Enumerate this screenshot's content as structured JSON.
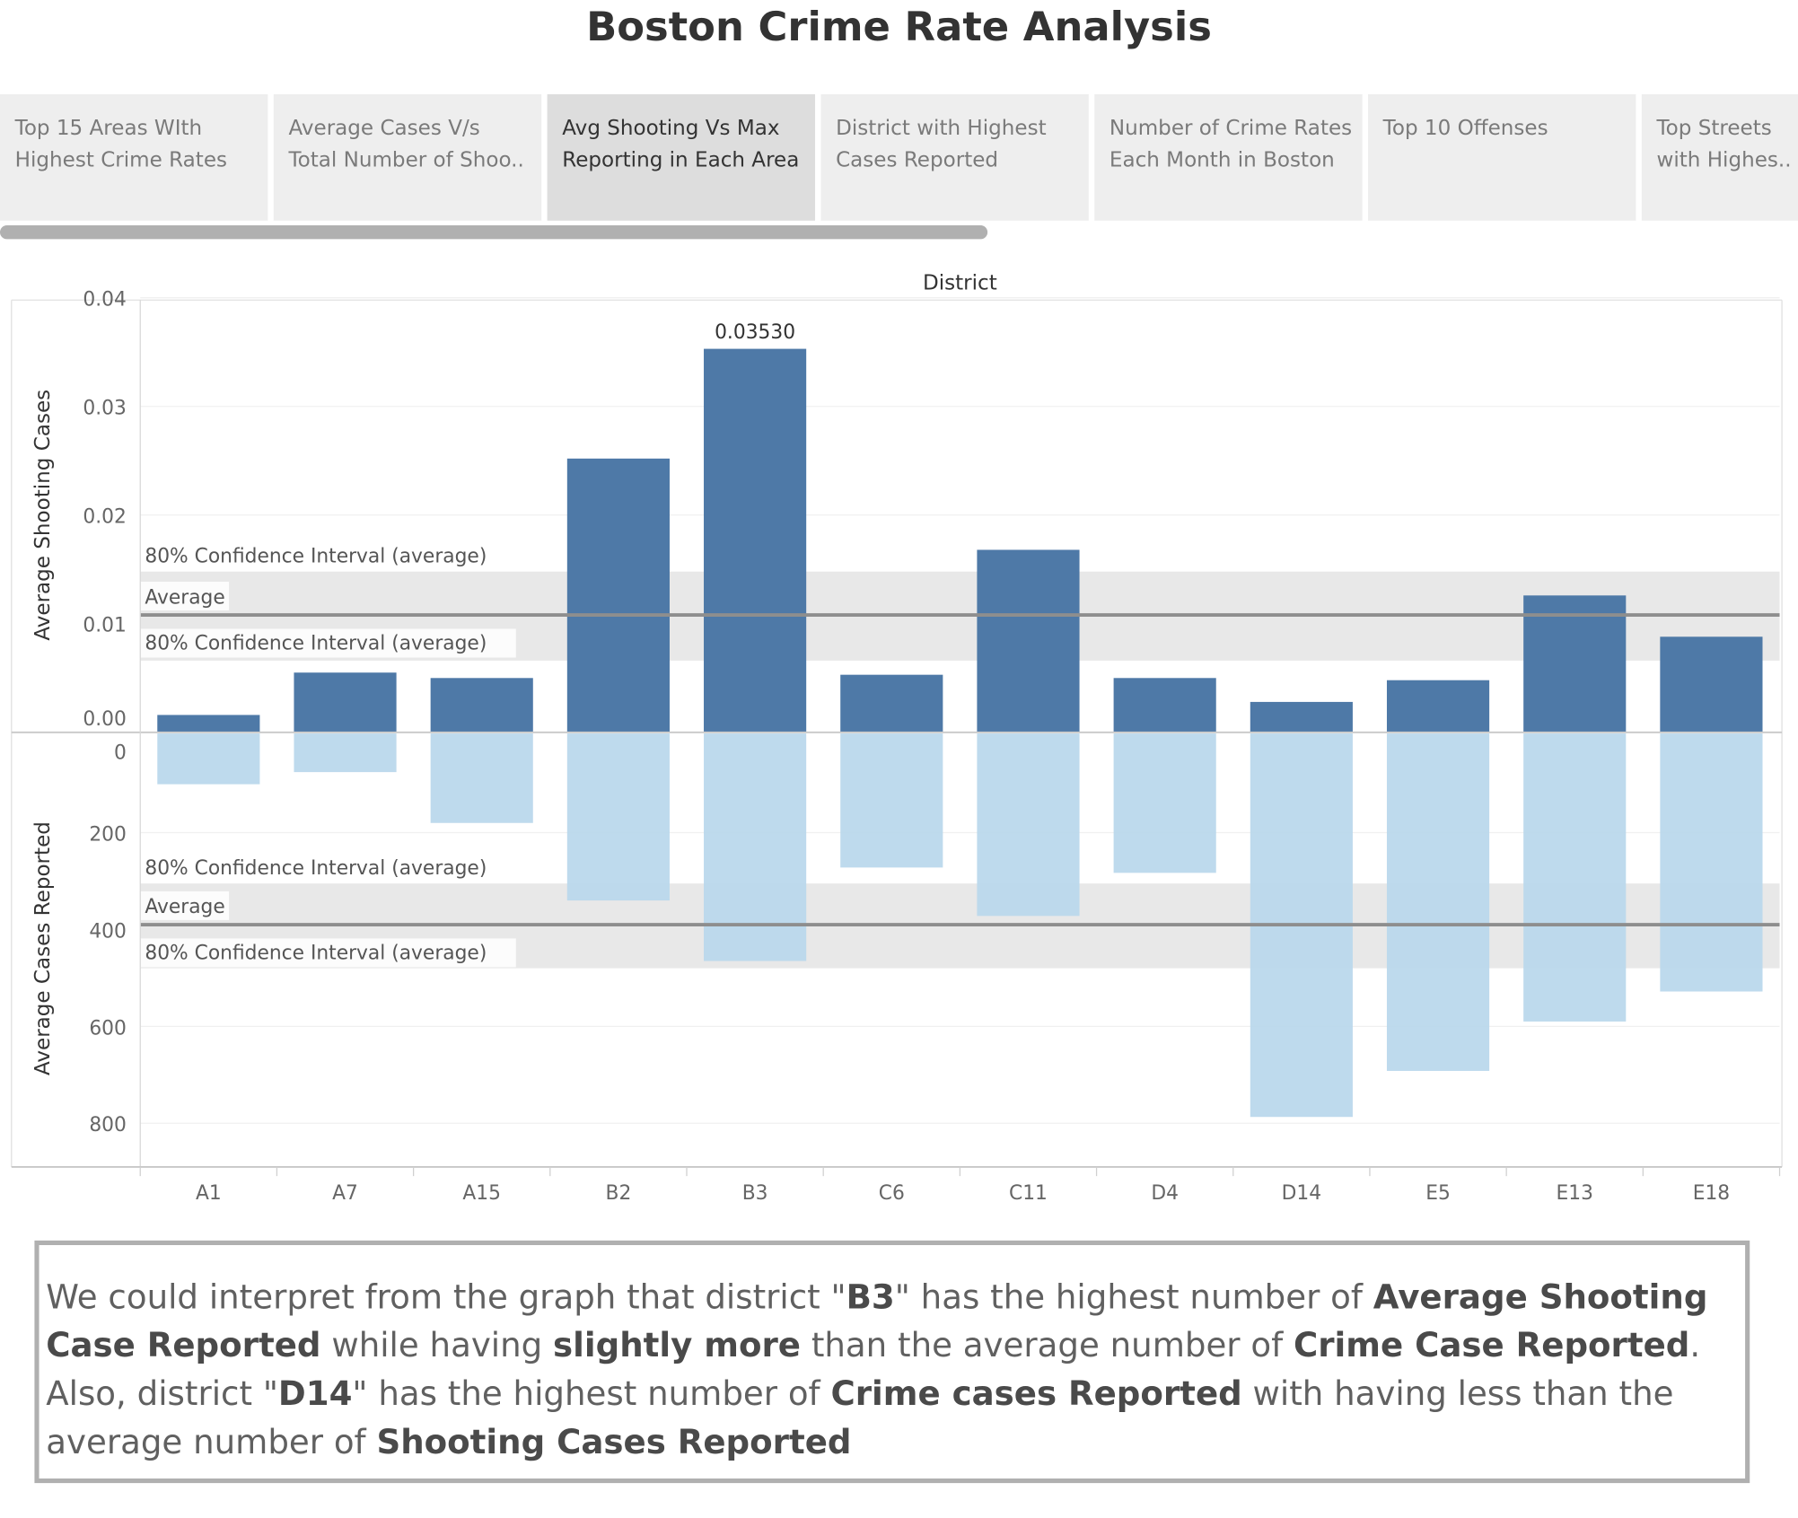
{
  "title": "Boston Crime Rate Analysis",
  "tabs": [
    {
      "line1": "Top 15 Areas WIth",
      "line2": "Highest Crime Rates",
      "active": false
    },
    {
      "line1": "Average Cases V/s",
      "line2": "Total Number of Shoo..",
      "active": false
    },
    {
      "line1": "Avg Shooting Vs Max",
      "line2": "Reporting in Each Area",
      "active": true
    },
    {
      "line1": "District with Highest",
      "line2": "Cases Reported",
      "active": false
    },
    {
      "line1": "Number of Crime Rates",
      "line2": "Each Month in Boston",
      "active": false
    },
    {
      "line1": "Top 10 Offenses",
      "line2": "",
      "active": false
    },
    {
      "line1": "Top Streets",
      "line2": "with Highes..",
      "active": false
    }
  ],
  "chart_data": {
    "type": "bar",
    "xlabel": "District",
    "categories": [
      "A1",
      "A7",
      "A15",
      "B2",
      "B3",
      "C6",
      "C11",
      "D4",
      "D14",
      "E5",
      "E13",
      "E18"
    ],
    "colors": {
      "shooting": "#4e79a7",
      "cases": "#b8d7ec",
      "band": "#e8e8e8",
      "average_line": "#8e8e8e"
    },
    "panels": [
      {
        "name": "shooting",
        "ylabel": "Average Shooting Cases",
        "ylim": [
          0,
          0.04
        ],
        "ticks": [
          "0.04",
          "0.03",
          "0.02",
          "0.01",
          "0.00"
        ],
        "tick_values": [
          0.04,
          0.03,
          0.02,
          0.01,
          0.0
        ],
        "values": [
          0.0016,
          0.0055,
          0.005,
          0.0252,
          0.0353,
          0.0053,
          0.0168,
          0.005,
          0.0028,
          0.0048,
          0.0126,
          0.0088
        ],
        "average": 0.0108,
        "confidence_interval": [
          0.0066,
          0.0148
        ],
        "value_label": {
          "index": 4,
          "text": "0.03530"
        },
        "ref_labels": {
          "upper": "80% Confidence Interval (average)",
          "average": "Average",
          "lower": "80% Confidence Interval (average)"
        }
      },
      {
        "name": "cases",
        "ylabel": "Average Cases Reported",
        "ylim": [
          0,
          900
        ],
        "reversed": true,
        "ticks": [
          "0",
          "200",
          "400",
          "600",
          "800"
        ],
        "tick_values": [
          0,
          200,
          400,
          600,
          800
        ],
        "values": [
          100,
          75,
          180,
          340,
          465,
          272,
          372,
          283,
          787,
          692,
          590,
          528
        ],
        "average": 390,
        "confidence_interval": [
          305,
          480
        ],
        "ref_labels": {
          "upper": "80% Confidence Interval (average)",
          "average": "Average",
          "lower": "80% Confidence Interval (average)"
        }
      }
    ]
  },
  "annotation": {
    "p1_a": "We could interpret from the graph that district \"",
    "p1_b": "B3",
    "p1_c": "\" has the highest number of ",
    "p1_d": "Average Shooting Case Reported",
    "p1_e": " while having ",
    "p1_f": "slightly more",
    "p1_g": " than the average number of ",
    "p1_h": "Crime Case Reported",
    "p1_i": ".",
    "p2_a": "Also, district \"",
    "p2_b": "D14",
    "p2_c": "\" has the highest number of ",
    "p2_d": "Crime cases Reported",
    "p2_e": " with having less than the average number of ",
    "p2_f": "Shooting Cases Reported"
  }
}
